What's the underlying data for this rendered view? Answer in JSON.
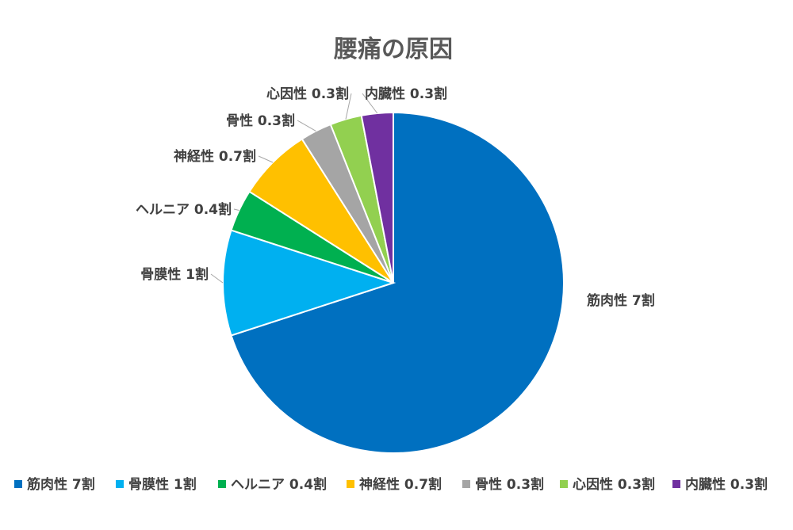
{
  "chart_data": {
    "type": "pie",
    "title": "腰痛の原因",
    "categories": [
      "筋肉性",
      "骨膜性",
      "ヘルニア",
      "神経性",
      "骨性",
      "心因性",
      "内臓性"
    ],
    "values": [
      7,
      1,
      0.4,
      0.7,
      0.3,
      0.3,
      0.3
    ],
    "data_labels": [
      "筋肉性 7割",
      "骨膜性 1割",
      "ヘルニア 0.4割",
      "神経性 0.7割",
      "骨性 0.3割",
      "心因性 0.3割",
      "内臓性 0.3割"
    ],
    "colors": [
      "#0070C0",
      "#00B0F0",
      "#00B050",
      "#FFC000",
      "#A5A5A5",
      "#92D050",
      "#7030A0"
    ],
    "legend_position": "bottom"
  }
}
